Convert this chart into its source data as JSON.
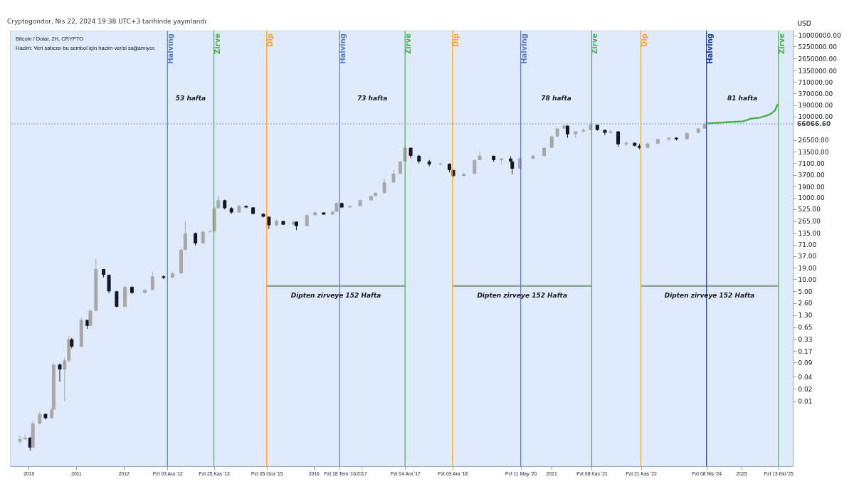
{
  "chart_data": {
    "type": "candlestick",
    "title": "Bitcoin / Dolar, 2H, CRYPTO",
    "subtitle": "Hacim: Veri satıcısı bu sembol için hacim verisi sağlamıyor.",
    "ylabel": "USD",
    "log": true,
    "xlim": [
      "2009-08-10",
      "2026-02-01"
    ],
    "ylim": [
      0.00025,
      13000000
    ],
    "xticks": [
      "2010",
      "2011",
      "2012",
      {
        "value": "2012-12-03",
        "label": "Pzt 03 Ara '12"
      },
      {
        "value": "2013-11-25",
        "label": "Pzt 25 Kas '13"
      },
      {
        "value": "2015-01-05",
        "label": "Pzt 05 Oca '15"
      },
      "2016",
      {
        "value": "2016-07-18",
        "label": "Pzt 18 Tem '16"
      },
      "2017",
      {
        "value": "2017-12-04",
        "label": "Pzt 04 Ara '17"
      },
      {
        "value": "2018-12-03",
        "label": "Pzt 03 Ara '18"
      },
      {
        "value": "2020-05-11",
        "label": "Pzt 11 May '20"
      },
      "2021",
      {
        "value": "2021-11-08",
        "label": "Pzt 08 Kas '21"
      },
      {
        "value": "2022-11-21",
        "label": "Pzt 21 Kas '22"
      },
      {
        "value": "2024-04-08",
        "label": "Pzt 08 Nis '24"
      },
      "2025",
      {
        "value": "2025-10-13",
        "label": "Pzt 13 Eki '25"
      }
    ],
    "yticks": [
      {
        "value": 0.01,
        "label": "0.01"
      },
      {
        "value": 0.02,
        "label": "0.02"
      },
      {
        "value": 0.04,
        "label": "0.04"
      },
      {
        "value": 0.09,
        "label": "0.09"
      },
      {
        "value": 0.17,
        "label": "0.17"
      },
      {
        "value": 0.33,
        "label": "0.33"
      },
      {
        "value": 0.65,
        "label": "0.65"
      },
      {
        "value": 1.3,
        "label": "1.30"
      },
      {
        "value": 2.6,
        "label": "2.60"
      },
      {
        "value": 5,
        "label": "5.00"
      },
      {
        "value": 10,
        "label": "10.00"
      },
      {
        "value": 19,
        "label": "19.00"
      },
      {
        "value": 37,
        "label": "37.00"
      },
      {
        "value": 71,
        "label": "71.00"
      },
      {
        "value": 135,
        "label": "135.00"
      },
      {
        "value": 265,
        "label": "265.00"
      },
      {
        "value": 525,
        "label": "525.00"
      },
      {
        "value": 1000,
        "label": "1000.00"
      },
      {
        "value": 1900,
        "label": "1900.00"
      },
      {
        "value": 3700,
        "label": "3700.00"
      },
      {
        "value": 7100,
        "label": "7100.00"
      },
      {
        "value": 13500,
        "label": "13500.00"
      },
      {
        "value": 26500,
        "label": "26500.00"
      },
      {
        "value": 100000,
        "label": "100000.00"
      },
      {
        "value": 190000,
        "label": "190000.00"
      },
      {
        "value": 370000,
        "label": "370000.00"
      },
      {
        "value": 710000,
        "label": "710000.00"
      },
      {
        "value": 1350000,
        "label": "1350000.00"
      },
      {
        "value": 2650000,
        "label": "2650000.00"
      },
      {
        "value": 5250000,
        "label": "5250000.00"
      },
      {
        "value": 10000000,
        "label": "10000000.00"
      }
    ],
    "x": [
      "2009-10-26",
      "2009-12-05",
      "2010-01-12",
      "2010-02-02",
      "2010-03-27",
      "2010-05-10",
      "2010-06-27",
      "2010-07-12",
      "2010-08-28",
      "2010-10-04",
      "2010-11-06",
      "2010-11-28",
      "2011-02-10",
      "2011-03-28",
      "2011-04-20",
      "2011-06-02",
      "2011-07-31",
      "2011-09-10",
      "2011-11-08",
      "2012-01-11",
      "2012-03-05",
      "2012-06-13",
      "2012-08-10",
      "2012-11-03",
      "2013-01-11",
      "2013-03-18",
      "2013-04-19",
      "2013-07-06",
      "2013-09-02",
      "2013-10-26",
      "2013-11-28",
      "2013-12-29",
      "2014-02-16",
      "2014-04-09",
      "2014-06-06",
      "2014-07-31",
      "2014-09-22",
      "2014-12-10",
      "2015-01-22",
      "2015-03-21",
      "2015-05-12",
      "2015-07-31",
      "2015-08-21",
      "2015-11-10",
      "2016-01-12",
      "2016-03-18",
      "2016-05-26",
      "2016-06-25",
      "2016-08-04",
      "2016-10-06",
      "2016-12-24",
      "2017-03-18",
      "2017-04-20",
      "2017-06-28",
      "2017-09-06",
      "2017-10-28",
      "2017-12-03",
      "2018-01-16",
      "2018-03-21",
      "2018-06-08",
      "2018-09-02",
      "2018-11-10",
      "2018-12-10",
      "2019-02-28",
      "2019-05-22",
      "2019-07-01",
      "2019-10-16",
      "2019-12-14",
      "2020-02-24",
      "2020-03-07",
      "2020-05-04",
      "2020-08-14",
      "2020-11-07",
      "2021-01-05",
      "2021-02-17",
      "2021-04-10",
      "2021-05-06",
      "2021-07-07",
      "2021-09-05",
      "2021-10-30",
      "2021-12-21",
      "2022-02-17",
      "2022-04-02",
      "2022-05-30",
      "2022-07-31",
      "2022-10-04",
      "2022-11-10",
      "2023-01-12",
      "2023-04-01",
      "2023-06-24",
      "2023-08-21",
      "2023-11-10",
      "2024-02-06",
      "2024-03-25"
    ],
    "ohlc": [
      [
        0.001,
        0.0014,
        0.0009,
        0.00116
      ],
      [
        0.00116,
        0.0015,
        0.0011,
        0.00126
      ],
      [
        0.00126,
        0.0013,
        0.0006,
        0.00072
      ],
      [
        0.00072,
        0.0033,
        0.0007,
        0.0028
      ],
      [
        0.0028,
        0.0055,
        0.0027,
        0.0048
      ],
      [
        0.0048,
        0.005,
        0.0035,
        0.0038
      ],
      [
        0.0038,
        0.0068,
        0.0037,
        0.0061
      ],
      [
        0.0061,
        0.09,
        0.006,
        0.079
      ],
      [
        0.079,
        0.085,
        0.03,
        0.06
      ],
      [
        0.06,
        0.12,
        0.01,
        0.1
      ],
      [
        0.1,
        0.4,
        0.09,
        0.33
      ],
      [
        0.33,
        0.36,
        0.2,
        0.22
      ],
      [
        0.22,
        1.1,
        0.21,
        0.99
      ],
      [
        0.99,
        1.0,
        0.6,
        0.71
      ],
      [
        0.71,
        1.9,
        0.7,
        1.67
      ],
      [
        1.67,
        31,
        1.6,
        17.7
      ],
      [
        17.7,
        18,
        11,
        12.7
      ],
      [
        12.7,
        13,
        4.5,
        5.0
      ],
      [
        5.0,
        5.2,
        2.0,
        2.1
      ],
      [
        2.1,
        7,
        2.0,
        6.4
      ],
      [
        6.4,
        6.8,
        4.3,
        4.6
      ],
      [
        4.6,
        5.8,
        4.4,
        5.4
      ],
      [
        5.4,
        15,
        5.3,
        11.7
      ],
      [
        11.7,
        12.5,
        10,
        10.8
      ],
      [
        10.8,
        15,
        10.5,
        13.9
      ],
      [
        13.9,
        60,
        13.5,
        52.8
      ],
      [
        52.8,
        265,
        50,
        135
      ],
      [
        135,
        140,
        68,
        76
      ],
      [
        76,
        150,
        74,
        146
      ],
      [
        146,
        160,
        140,
        150
      ],
      [
        150,
        620,
        140,
        557
      ],
      [
        557,
        1150,
        550,
        873
      ],
      [
        873,
        900,
        520,
        557
      ],
      [
        557,
        600,
        400,
        437
      ],
      [
        437,
        680,
        430,
        631
      ],
      [
        631,
        650,
        560,
        581
      ],
      [
        581,
        590,
        390,
        403
      ],
      [
        403,
        420,
        330,
        343
      ],
      [
        343,
        350,
        170,
        211
      ],
      [
        211,
        290,
        200,
        269
      ],
      [
        269,
        275,
        215,
        219
      ],
      [
        219,
        270,
        215,
        258
      ],
      [
        258,
        265,
        160,
        202
      ],
      [
        202,
        400,
        200,
        373
      ],
      [
        373,
        460,
        360,
        437
      ],
      [
        437,
        440,
        380,
        388
      ],
      [
        388,
        470,
        380,
        456
      ],
      [
        456,
        780,
        450,
        741
      ],
      [
        741,
        760,
        560,
        581
      ],
      [
        581,
        650,
        570,
        631
      ],
      [
        631,
        900,
        620,
        873
      ],
      [
        873,
        1150,
        870,
        1110
      ],
      [
        1110,
        1350,
        1080,
        1310
      ],
      [
        1310,
        2900,
        1290,
        2400
      ],
      [
        2400,
        4900,
        2350,
        3930
      ],
      [
        3930,
        7900,
        3900,
        7830
      ],
      [
        7830,
        19800,
        7800,
        17000
      ],
      [
        17000,
        17500,
        9500,
        10800
      ],
      [
        10800,
        11500,
        7000,
        7830
      ],
      [
        7830,
        8500,
        6000,
        6660
      ],
      [
        6660,
        7400,
        6200,
        6900
      ],
      [
        6900,
        7000,
        4200,
        4810
      ],
      [
        4810,
        4900,
        3200,
        3470
      ],
      [
        3470,
        4100,
        3400,
        3930
      ],
      [
        3930,
        8600,
        3900,
        8490
      ],
      [
        8490,
        13800,
        8400,
        10800
      ],
      [
        10800,
        11000,
        7700,
        8490
      ],
      [
        8490,
        9500,
        6600,
        9230
      ],
      [
        9230,
        10500,
        7700,
        7830
      ],
      [
        7830,
        8000,
        3800,
        5220
      ],
      [
        5220,
        9800,
        5100,
        9230
      ],
      [
        9230,
        11500,
        9000,
        10800
      ],
      [
        10800,
        17500,
        10600,
        17000
      ],
      [
        17000,
        34000,
        16800,
        32400
      ],
      [
        32400,
        52000,
        31000,
        50800
      ],
      [
        50800,
        64000,
        50000,
        59600
      ],
      [
        59600,
        60000,
        30000,
        36700
      ],
      [
        36700,
        43500,
        29500,
        43000
      ],
      [
        43000,
        52000,
        40000,
        46800
      ],
      [
        46800,
        69000,
        46000,
        62100
      ],
      [
        62100,
        63000,
        45000,
        46800
      ],
      [
        46800,
        48000,
        35000,
        39800
      ],
      [
        39800,
        47000,
        38000,
        43000
      ],
      [
        43000,
        43500,
        18000,
        20800
      ],
      [
        20800,
        24500,
        19000,
        22600
      ],
      [
        22600,
        23000,
        18500,
        19100
      ],
      [
        19100,
        21500,
        15600,
        17000
      ],
      [
        17000,
        23000,
        16500,
        21600
      ],
      [
        21600,
        28500,
        21000,
        27600
      ],
      [
        27600,
        31500,
        25000,
        30000
      ],
      [
        30000,
        31000,
        25500,
        27600
      ],
      [
        27600,
        40000,
        26500,
        39800
      ],
      [
        39800,
        52000,
        38500,
        50800
      ],
      [
        50800,
        73800,
        50000,
        66066.6
      ]
    ],
    "colors": [
      "#a8a8a8",
      "#a8a8a8",
      "#131722",
      "#a8a8a8",
      "#a8a8a8",
      "#131722",
      "#a8a8a8",
      "#a8a8a8",
      "#131722",
      "#a8a8a8",
      "#a8a8a8",
      "#131722",
      "#a8a8a8",
      "#131722",
      "#a8a8a8",
      "#a8a8a8",
      "#131722",
      "#131722",
      "#131722",
      "#a8a8a8",
      "#131722",
      "#a8a8a8",
      "#a8a8a8",
      "#131722",
      "#a8a8a8",
      "#a8a8a8",
      "#a8a8a8",
      "#131722",
      "#a8a8a8",
      "#a8a8a8",
      "#a8a8a8",
      "#a8a8a8",
      "#131722",
      "#131722",
      "#a8a8a8",
      "#131722",
      "#131722",
      "#131722",
      "#131722",
      "#a8a8a8",
      "#131722",
      "#a8a8a8",
      "#131722",
      "#a8a8a8",
      "#a8a8a8",
      "#131722",
      "#a8a8a8",
      "#a8a8a8",
      "#131722",
      "#a8a8a8",
      "#a8a8a8",
      "#a8a8a8",
      "#a8a8a8",
      "#a8a8a8",
      "#a8a8a8",
      "#a8a8a8",
      "#a8a8a8",
      "#131722",
      "#131722",
      "#131722",
      "#a8a8a8",
      "#131722",
      "#131722",
      "#a8a8a8",
      "#a8a8a8",
      "#a8a8a8",
      "#131722",
      "#a8a8a8",
      "#131722",
      "#131722",
      "#a8a8a8",
      "#a8a8a8",
      "#a8a8a8",
      "#a8a8a8",
      "#a8a8a8",
      "#a8a8a8",
      "#131722",
      "#a8a8a8",
      "#a8a8a8",
      "#a8a8a8",
      "#131722",
      "#131722",
      "#a8a8a8",
      "#131722",
      "#a8a8a8",
      "#131722",
      "#131722",
      "#a8a8a8",
      "#a8a8a8",
      "#a8a8a8",
      "#131722",
      "#a8a8a8",
      "#a8a8a8",
      "#a8a8a8"
    ],
    "series": [
      {
        "type": "line",
        "color": "#4caf50",
        "x": [
          "2024-04-05",
          "2024-10-08",
          "2025-01-16",
          "2025-03-21",
          "2025-05-19",
          "2025-06-28",
          "2025-08-11",
          "2025-09-16",
          "2025-10-08"
        ],
        "values": [
          67500,
          73300,
          76300,
          89600,
          93500,
          101600,
          114000,
          140000,
          202000
        ]
      },
      {
        "type": "line",
        "color": "#8fa89a",
        "x": [
          "2015-01-05",
          "2017-12-04"
        ],
        "values": [
          6.8,
          6.8
        ]
      },
      {
        "type": "line",
        "color": "#8fa89a",
        "x": [
          "2018-12-03",
          "2021-11-08"
        ],
        "values": [
          6.8,
          6.8
        ]
      },
      {
        "type": "line",
        "color": "#8fa89a",
        "x": [
          "2022-11-21",
          "2025-10-13"
        ],
        "values": [
          6.8,
          6.8
        ]
      }
    ],
    "ref_lines": [
      {
        "axis": "x",
        "value": "2012-12-03",
        "label": "Halving",
        "color": "#5b7bc4"
      },
      {
        "axis": "x",
        "value": "2013-11-25",
        "label": "Zirve",
        "color": "#4caf50"
      },
      {
        "axis": "x",
        "value": "2015-01-05",
        "label": "Dip",
        "color": "#f5a623"
      },
      {
        "axis": "x",
        "value": "2016-07-18",
        "label": "Halving",
        "color": "#5b7bc4"
      },
      {
        "axis": "x",
        "value": "2017-12-04",
        "label": "Zirve",
        "color": "#4caf50"
      },
      {
        "axis": "x",
        "value": "2018-12-03",
        "label": "Dip",
        "color": "#f5a623"
      },
      {
        "axis": "x",
        "value": "2020-05-11",
        "label": "Halving",
        "color": "#5b7bc4"
      },
      {
        "axis": "x",
        "value": "2021-11-08",
        "label": "Zirve",
        "color": "#4caf50"
      },
      {
        "axis": "x",
        "value": "2022-11-21",
        "label": "Dip",
        "color": "#f5a623"
      },
      {
        "axis": "x",
        "value": "2024-04-08",
        "label": "Halving",
        "color": "#1e3a8a"
      },
      {
        "axis": "x",
        "value": "2025-10-13",
        "label": "Zirve",
        "color": "#4caf50"
      },
      {
        "axis": "y",
        "value": 66066.6,
        "label": "66066.60",
        "color": "#7a9cd8",
        "line_style": "dotted"
      }
    ],
    "annotations": [
      "Cryptogondor, Nis 22, 2024 19:38 UTC+3 tarihinde yayınlandı",
      "53 hafta",
      "73 hafta",
      "78 hafta",
      "81 hafta",
      {
        "text": "Dipten zirveye 152 Hafta",
        "x": "2016-06-20",
        "y": 6.8
      },
      {
        "text": "Dipten zirveye 152 Hafta",
        "x": "2020-05-22",
        "y": 6.8
      },
      {
        "text": "Dipten zirveye 152 Hafta",
        "x": "2024-05-02",
        "y": 6.8
      }
    ]
  }
}
